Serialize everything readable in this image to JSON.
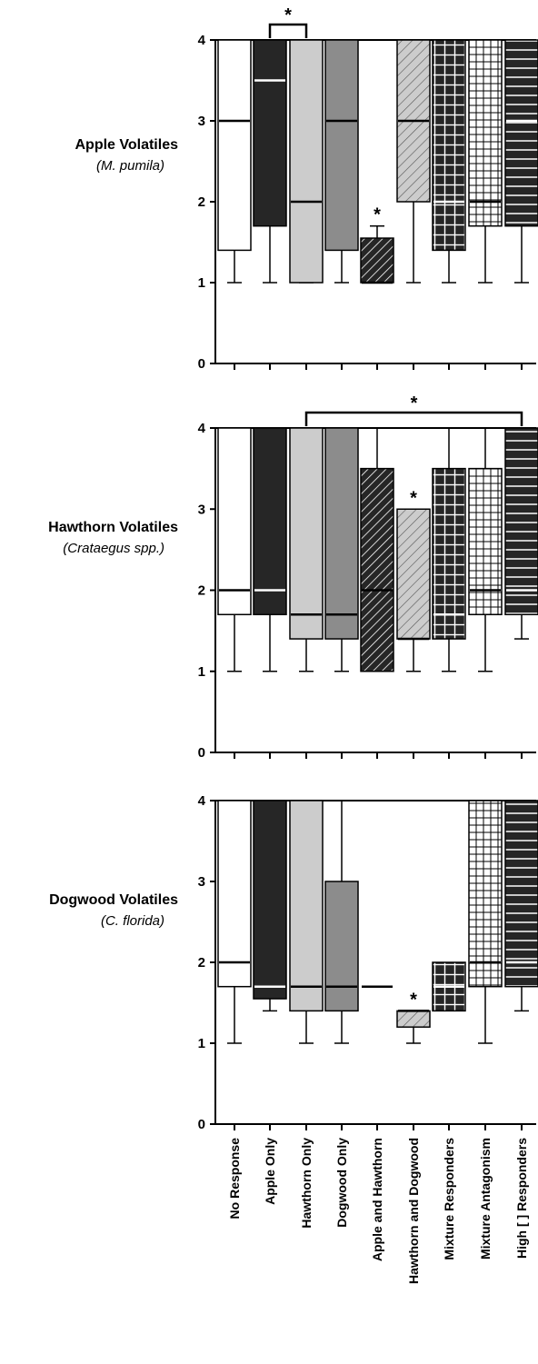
{
  "chart_data": {
    "type": "box",
    "categories": [
      "No Response",
      "Apple Only",
      "Hawthorn Only",
      "Dogwood Only",
      "Apple and Hawthorn",
      "Hawthorn and Dogwood",
      "Mixture Responders",
      "Mixture Antagonism",
      "High [ ] Responders"
    ],
    "yticks": [
      "0",
      "1",
      "2",
      "3",
      "4"
    ],
    "ylim": [
      0,
      4
    ],
    "styles": [
      {
        "fill": "#ffffff",
        "pattern": "none",
        "median_color": "#000000"
      },
      {
        "fill": "#262626",
        "pattern": "none",
        "median_color": "#ffffff"
      },
      {
        "fill": "#cccccc",
        "pattern": "none",
        "median_color": "#000000"
      },
      {
        "fill": "#8c8c8c",
        "pattern": "none",
        "median_color": "#000000"
      },
      {
        "fill": "#262626",
        "pattern": "diag-white",
        "median_color": "#000000"
      },
      {
        "fill": "#cccccc",
        "pattern": "diag-dark",
        "median_color": "#000000"
      },
      {
        "fill": "#262626",
        "pattern": "grid-white",
        "median_color": "#ffffff"
      },
      {
        "fill": "#ffffff",
        "pattern": "grid-black",
        "median_color": "#000000"
      },
      {
        "fill": "#262626",
        "pattern": "hlines-white",
        "median_color": "#ffffff"
      }
    ],
    "panels": [
      {
        "title": "Apple Volatiles",
        "subtitle": "(M. pumila)",
        "boxes": [
          {
            "q1": 1.4,
            "median": 3,
            "q3": 4,
            "whisker_low": 1
          },
          {
            "q1": 1.7,
            "median": 3.5,
            "q3": 4,
            "whisker_low": 1
          },
          {
            "q1": 1,
            "median": 2,
            "q3": 4,
            "whisker_low": 1
          },
          {
            "q1": 1.4,
            "median": 3,
            "q3": 4,
            "whisker_low": 1
          },
          {
            "q1": 1,
            "median": 1,
            "q3": 1.55,
            "whisker_high": 1.7,
            "star": "*"
          },
          {
            "q1": 2,
            "median": 3,
            "q3": 4,
            "whisker_low": 1
          },
          {
            "q1": 1.4,
            "median": 2,
            "q3": 4,
            "whisker_low": 1
          },
          {
            "q1": 1.7,
            "median": 2,
            "q3": 4,
            "whisker_low": 1
          },
          {
            "q1": 1.7,
            "median": 3,
            "q3": 4,
            "whisker_low": 1
          }
        ],
        "brackets": [
          {
            "from": 1,
            "to": 2,
            "label": "*"
          }
        ]
      },
      {
        "title": "Hawthorn Volatiles",
        "subtitle": "(Crataegus spp.)",
        "boxes": [
          {
            "q1": 1.7,
            "median": 2,
            "q3": 4,
            "whisker_low": 1
          },
          {
            "q1": 1.7,
            "median": 2,
            "q3": 4,
            "whisker_low": 1
          },
          {
            "q1": 1.4,
            "median": 1.7,
            "q3": 4,
            "whisker_low": 1
          },
          {
            "q1": 1.4,
            "median": 1.7,
            "q3": 4,
            "whisker_low": 1
          },
          {
            "q1": 1,
            "median": 2,
            "q3": 3.5,
            "whisker_high": 4
          },
          {
            "q1": 1.4,
            "median": 1.4,
            "q3": 3,
            "whisker_low": 1,
            "star": "*"
          },
          {
            "q1": 1.4,
            "median": 1.7,
            "q3": 3.5,
            "whisker_low": 1,
            "whisker_high": 4
          },
          {
            "q1": 1.7,
            "median": 2,
            "q3": 3.5,
            "whisker_low": 1,
            "whisker_high": 4
          },
          {
            "q1": 1.7,
            "median": 2,
            "q3": 4,
            "whisker_low": 1.4
          }
        ],
        "brackets": [
          {
            "from": 2,
            "to": 8,
            "label": "*"
          }
        ]
      },
      {
        "title": "Dogwood Volatiles",
        "subtitle": "(C. florida)",
        "boxes": [
          {
            "q1": 1.7,
            "median": 2,
            "q3": 4,
            "whisker_low": 1
          },
          {
            "q1": 1.55,
            "median": 1.7,
            "q3": 4,
            "whisker_low": 1.4
          },
          {
            "q1": 1.4,
            "median": 1.7,
            "q3": 4,
            "whisker_low": 1
          },
          {
            "q1": 1.4,
            "median": 1.7,
            "q3": 3,
            "whisker_low": 1,
            "whisker_high": 4
          },
          {
            "q1": 1.7,
            "median": 1.7,
            "q3": 1.7
          },
          {
            "q1": 1.2,
            "median": 1.4,
            "q3": 1.4,
            "whisker_low": 1,
            "star": "*"
          },
          {
            "q1": 1.4,
            "median": 1.7,
            "q3": 2
          },
          {
            "q1": 1.7,
            "median": 2,
            "q3": 4,
            "whisker_low": 1
          },
          {
            "q1": 1.7,
            "median": 2,
            "q3": 4,
            "whisker_low": 1.4
          }
        ],
        "brackets": []
      }
    ]
  }
}
